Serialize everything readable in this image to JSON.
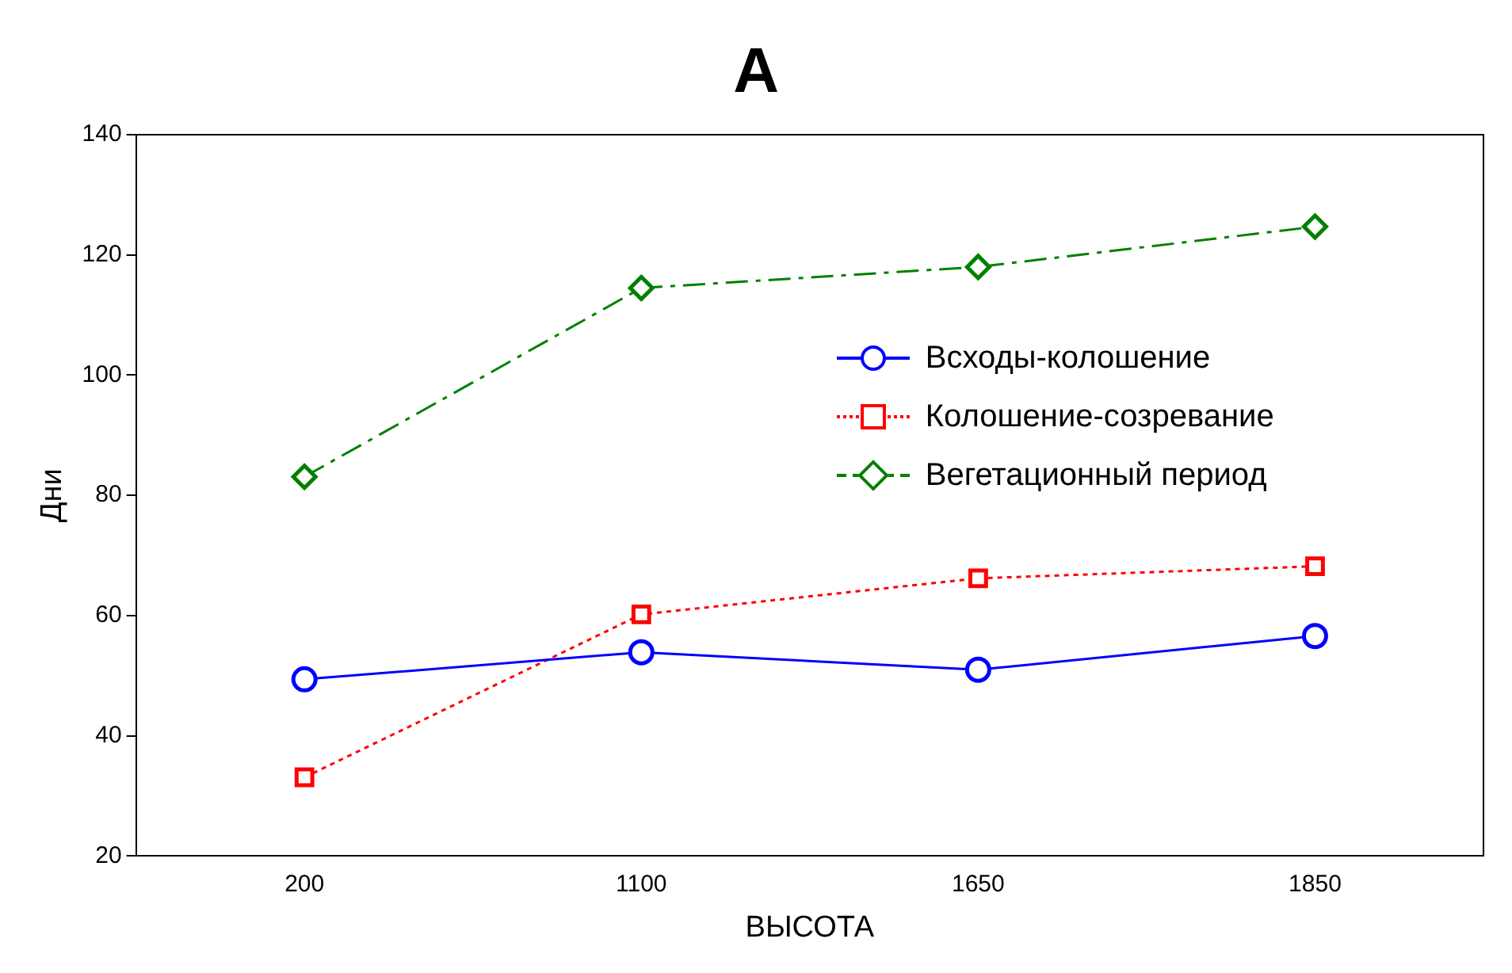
{
  "chart_data": {
    "type": "line",
    "title": "A",
    "xlabel": "ВЫСОТА",
    "ylabel": "Дни",
    "categories": [
      "200",
      "1100",
      "1650",
      "1850"
    ],
    "series": [
      {
        "name": "Всходы-колошение",
        "color": "#0000ff",
        "values": [
          49.4,
          53.9,
          51,
          56.6
        ],
        "marker": "circle",
        "line_style": "solid"
      },
      {
        "name": "Колошение-созревание",
        "color": "#ff0000",
        "values": [
          33.1,
          60.2,
          66.2,
          68.2
        ],
        "marker": "square",
        "line_style": "dotted"
      },
      {
        "name": "Вегетационный период",
        "color": "#008000",
        "values": [
          83.1,
          114.5,
          118,
          124.7
        ],
        "marker": "diamond",
        "line_style": "dashed"
      }
    ],
    "ylim": [
      20,
      140
    ],
    "yticks": [
      20,
      40,
      60,
      80,
      100,
      120,
      140
    ],
    "grid": false,
    "legend": "right"
  }
}
